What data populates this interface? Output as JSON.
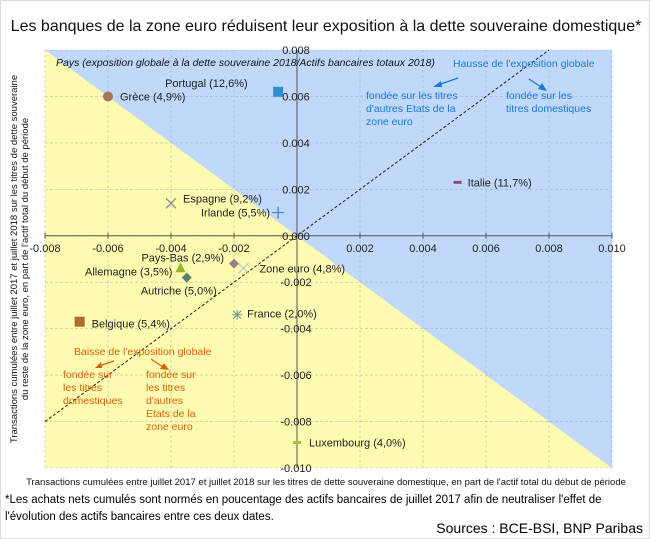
{
  "chart_data": {
    "type": "scatter",
    "title": "Les banques de la zone euro réduisent leur exposition à la dette souveraine domestique*",
    "subtitle": "Pays (exposition globale à la dette souveraine 2018/Actifs bancaires totaux 2018)",
    "xlabel": "Transactions cumulées entre juillet 2017 et juillet 2018 sur les titres de dette souveraine domestique, en part de l'actif total du début de période",
    "ylabel": "Transactions cumulées entre juillet 2017 et juillet 2018 sur les titres de dette souveraine du reste de la zone euro, en part de l'actif total du début de période",
    "xlim": [
      -0.008,
      0.01
    ],
    "ylim": [
      -0.01,
      0.008
    ],
    "xticks": [
      "-0.008",
      "-0.006",
      "-0.004",
      "-0.002",
      "0.000",
      "0.002",
      "0.004",
      "0.006",
      "0.008",
      "0.010"
    ],
    "yticks": [
      "0.008",
      "0.006",
      "0.004",
      "0.002",
      "0.000",
      "-0.002",
      "-0.004",
      "-0.006",
      "-0.008",
      "-0.010"
    ],
    "grid": true,
    "regions": {
      "above_y_eq_minus_x": "#c0d8fa",
      "below_y_eq_minus_x": "#fdfbb0"
    },
    "reference_line": "y = x (dashed)",
    "points": [
      {
        "label": "Portugal (12,6%)",
        "x": -0.0006,
        "y": 0.0062,
        "marker": "square",
        "color": "#2e8fd0"
      },
      {
        "label": "Grèce (4,9%)",
        "x": -0.006,
        "y": 0.006,
        "marker": "circle",
        "color": "#a8765a"
      },
      {
        "label": "Espagne (9,2%)",
        "x": -0.004,
        "y": 0.0014,
        "marker": "x",
        "color": "#8a8a8a"
      },
      {
        "label": "Irlande (5,5%)",
        "x": -0.0006,
        "y": 0.001,
        "marker": "plus",
        "color": "#4a7ac8"
      },
      {
        "label": "Italie (11,7%)",
        "x": 0.0051,
        "y": 0.0023,
        "marker": "dash",
        "color": "#8a5070"
      },
      {
        "label": "Pays-Bas (2,9%)",
        "x": -0.002,
        "y": -0.0012,
        "marker": "diamond",
        "color": "#9a8080"
      },
      {
        "label": "Zone euro (4,8%)",
        "x": -0.0017,
        "y": -0.0014,
        "marker": "x",
        "color": "#c0c8c0"
      },
      {
        "label": "Allemagne (3,5%)",
        "x": -0.0037,
        "y": -0.0014,
        "marker": "triangle",
        "color": "#9ab43a"
      },
      {
        "label": "Autriche (5,0%)",
        "x": -0.0035,
        "y": -0.0018,
        "marker": "diamond",
        "color": "#5a806a"
      },
      {
        "label": "France (2,0%)",
        "x": -0.0019,
        "y": -0.0034,
        "marker": "star",
        "color": "#6a9a8a"
      },
      {
        "label": "Belgique (5,4%)",
        "x": -0.0069,
        "y": -0.0037,
        "marker": "square",
        "color": "#b06a30"
      },
      {
        "label": "Luxembourg (4,0%)",
        "x": 0.0,
        "y": -0.0089,
        "marker": "dash",
        "color": "#a8c040"
      }
    ],
    "annotations": {
      "hausse": "Hausse de l'exposition globale",
      "hausse_autres": [
        "fondée sur les titres",
        "d'autres Etats de la",
        "zone euro"
      ],
      "hausse_dom": [
        "fondée sur les",
        "titres domestiques"
      ],
      "baisse": "Baisse de l'exposition globale",
      "baisse_dom": [
        "fondée sur",
        "les titres",
        "domestiques"
      ],
      "baisse_autres": [
        "fondée sur",
        "les titres",
        "d'autres",
        "Etats de la",
        "zone euro"
      ],
      "blue_color": "#1a7ad8",
      "orange_color": "#d8620a"
    }
  },
  "footnote": "*Les achats nets cumulés sont normés en poucentage des actifs bancaires de juillet 2017 afin de neutraliser l'effet de l'évolution des actifs bancaires entre ces deux dates.",
  "sources": "Sources : BCE-BSI, BNP Paribas"
}
